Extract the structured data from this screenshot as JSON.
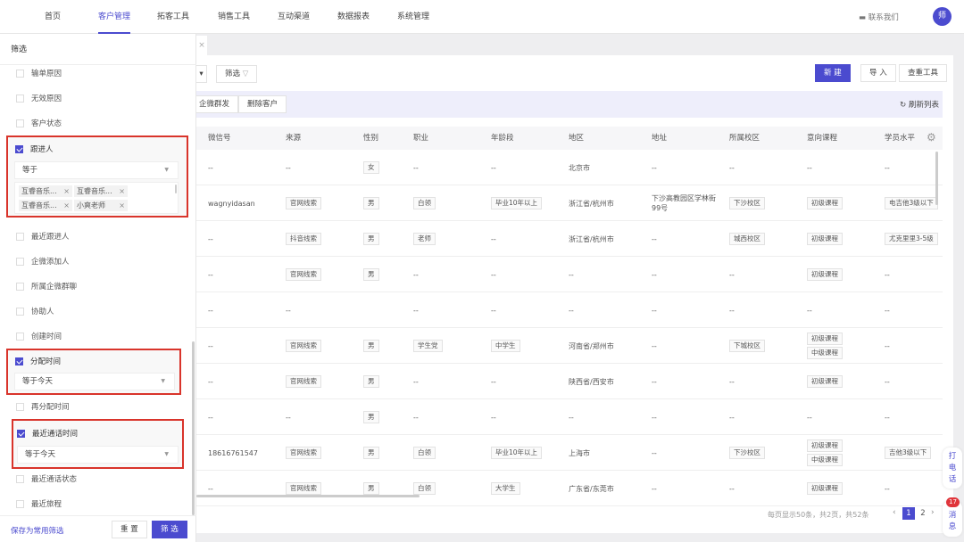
{
  "nav": {
    "items": [
      "首页",
      "客户管理",
      "拓客工具",
      "销售工具",
      "互动渠道",
      "数据报表",
      "系统管理"
    ],
    "active": 1,
    "contact": "联系我们",
    "avatar": "师"
  },
  "toolbar": {
    "filter_label": "筛选",
    "new": "新 建",
    "import": "导 入",
    "dedupe": "查重工具",
    "wecom_mass": "企微群发",
    "delete": "删除客户",
    "refresh": "刷新列表"
  },
  "table": {
    "headers": [
      "微信号",
      "来源",
      "性别",
      "职业",
      "年龄段",
      "地区",
      "地址",
      "所属校区",
      "意向课程",
      "学员水平"
    ],
    "rows": [
      [
        [
          "--"
        ],
        [
          "--"
        ],
        [
          "女"
        ],
        [
          "--"
        ],
        [
          "--"
        ],
        [
          "北京市"
        ],
        [
          "--"
        ],
        [
          "--"
        ],
        [
          "--"
        ],
        [
          "--"
        ]
      ],
      [
        [
          "wagnyidasan"
        ],
        [
          "官网线索"
        ],
        [
          "男"
        ],
        [
          "白领"
        ],
        [
          "毕业10年以上"
        ],
        [
          "浙江省/杭州市"
        ],
        [
          "下沙高教园区学林街99号"
        ],
        [
          "下沙校区"
        ],
        [
          "初级课程"
        ],
        [
          "电吉他3级以下"
        ]
      ],
      [
        [
          "--"
        ],
        [
          "抖音线索"
        ],
        [
          "男"
        ],
        [
          "老师"
        ],
        [
          "--"
        ],
        [
          "浙江省/杭州市"
        ],
        [
          "--"
        ],
        [
          "城西校区"
        ],
        [
          "初级课程"
        ],
        [
          "尤克里里3-5级"
        ]
      ],
      [
        [
          "--"
        ],
        [
          "官网线索"
        ],
        [
          "男"
        ],
        [
          "--"
        ],
        [
          "--"
        ],
        [
          "--"
        ],
        [
          "--"
        ],
        [
          "--"
        ],
        [
          "初级课程"
        ],
        [
          "--"
        ]
      ],
      [
        [
          "--"
        ],
        [
          "--"
        ],
        [],
        [
          "--"
        ],
        [
          "--"
        ],
        [
          "--"
        ],
        [
          "--"
        ],
        [
          "--"
        ],
        [
          "--"
        ],
        [
          "--"
        ]
      ],
      [
        [
          "--"
        ],
        [
          "官网线索"
        ],
        [
          "男"
        ],
        [
          "学生党"
        ],
        [
          "中学生"
        ],
        [
          "河南省/郑州市"
        ],
        [
          "--"
        ],
        [
          "下城校区"
        ],
        [
          "初级课程",
          "中级课程"
        ],
        [
          "--"
        ]
      ],
      [
        [
          "--"
        ],
        [
          "官网线索"
        ],
        [
          "男"
        ],
        [
          "--"
        ],
        [
          "--"
        ],
        [
          "陕西省/西安市"
        ],
        [
          "--"
        ],
        [
          "--"
        ],
        [
          "初级课程"
        ],
        [
          "--"
        ]
      ],
      [
        [
          "--"
        ],
        [
          "--"
        ],
        [
          "男"
        ],
        [
          "--"
        ],
        [
          "--"
        ],
        [
          "--"
        ],
        [
          "--"
        ],
        [
          "--"
        ],
        [
          "--"
        ],
        [
          "--"
        ]
      ],
      [
        [
          "18616761547"
        ],
        [
          "官网线索"
        ],
        [
          "男"
        ],
        [
          "白领"
        ],
        [
          "毕业10年以上"
        ],
        [
          "上海市"
        ],
        [
          "--"
        ],
        [
          "下沙校区"
        ],
        [
          "初级课程",
          "中级课程"
        ],
        [
          "吉他3级以下"
        ]
      ],
      [
        [
          "--"
        ],
        [
          "官网线索"
        ],
        [
          "男"
        ],
        [
          "白领"
        ],
        [
          "大学生"
        ],
        [
          "广东省/东莞市"
        ],
        [
          "--"
        ],
        [
          "--"
        ],
        [
          "初级课程"
        ],
        [
          "--"
        ]
      ]
    ]
  },
  "pagination": {
    "summary": "每页显示50条，共2页，共52条",
    "pages": [
      "1",
      "2"
    ],
    "current": "1"
  },
  "filter": {
    "title": "筛选",
    "items_top": [
      "输单原因",
      "无效原因",
      "客户状态"
    ],
    "follower": {
      "label": "跟进人",
      "op": "等于",
      "chips": [
        "互睿音乐...",
        "互睿音乐...",
        "互睿音乐...",
        "小爽老师"
      ]
    },
    "items_mid": [
      "最近跟进人",
      "企微添加人",
      "所属企微群聊",
      "协助人",
      "创建时间"
    ],
    "assign": {
      "label": "分配时间",
      "op": "等于今天"
    },
    "reassign": "再分配时间",
    "lastcall": {
      "label": "最近通话时间",
      "op": "等于今天"
    },
    "items_bottom": [
      "最近通话状态",
      "最近旅程"
    ],
    "save": "保存为常用筛选",
    "reset": "重 置",
    "apply": "筛 选"
  },
  "side": {
    "call": "打电话",
    "msg": "消息",
    "msg_count": "17"
  },
  "colors": {
    "accent": "#4b4bcf",
    "highlight_box": "#d9342b"
  }
}
